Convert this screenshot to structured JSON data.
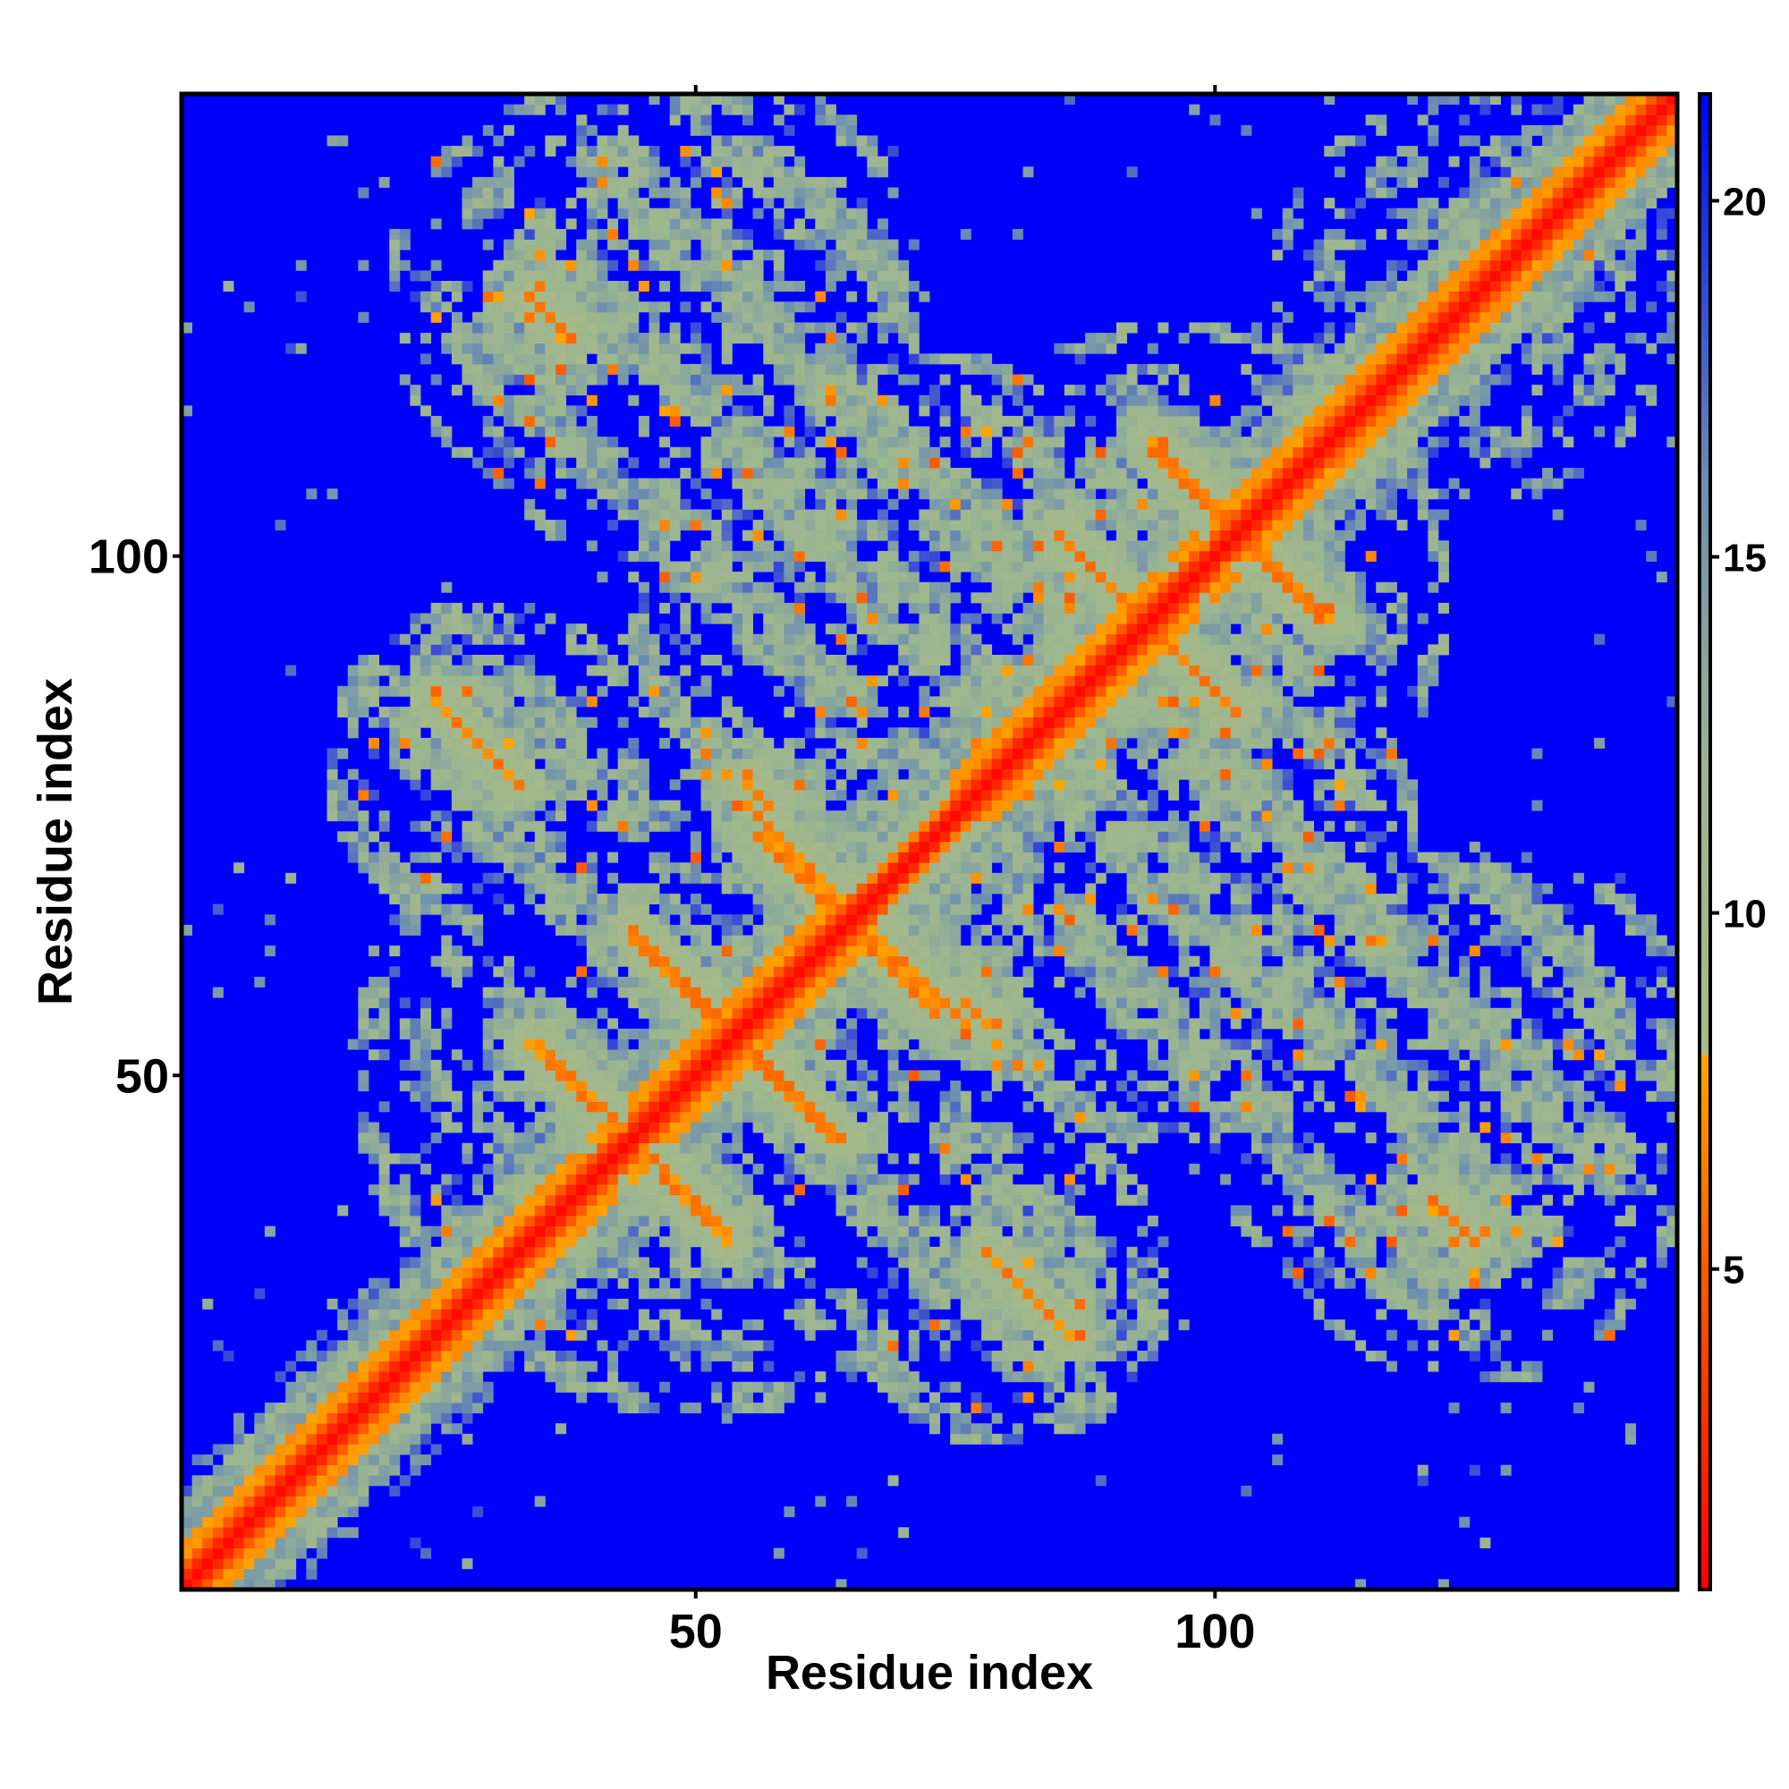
{
  "chart_data": {
    "type": "heatmap",
    "title": "",
    "xlabel": "Residue index",
    "ylabel": "Residue index",
    "n_residues": 144,
    "xlim": [
      1,
      144
    ],
    "ylim": [
      1,
      144
    ],
    "x_ticks": [
      {
        "value": 50,
        "label": "50"
      },
      {
        "value": 100,
        "label": "100"
      }
    ],
    "y_ticks": [
      {
        "value": 50,
        "label": "50"
      },
      {
        "value": 100,
        "label": "100"
      }
    ],
    "colorbar": {
      "range": [
        0.5,
        21.5
      ],
      "ticks": [
        {
          "value": 5,
          "label": "5"
        },
        {
          "value": 10,
          "label": "10"
        },
        {
          "value": 15,
          "label": "15"
        },
        {
          "value": 20,
          "label": "20"
        }
      ],
      "stops": [
        {
          "value": 0.5,
          "color": "#ff0000"
        },
        {
          "value": 5.0,
          "color": "#ff5a00"
        },
        {
          "value": 8.0,
          "color": "#ffa500"
        },
        {
          "value": 8.01,
          "color": "#aabb88"
        },
        {
          "value": 12.0,
          "color": "#9ab590"
        },
        {
          "value": 16.0,
          "color": "#6e8fb0"
        },
        {
          "value": 21.5,
          "color": "#0000ff"
        }
      ],
      "background_color": "#0000ff"
    },
    "features": {
      "diagonal_band_color": "#ff0000",
      "helices": [
        {
          "start": 1,
          "end": 42
        },
        {
          "start": 44,
          "end": 66
        },
        {
          "start": 75,
          "end": 98
        },
        {
          "start": 100,
          "end": 144
        }
      ],
      "sheet_contacts": [
        {
          "x1": 34,
          "y1": 53,
          "x2": 40,
          "y2": 47
        },
        {
          "x1": 44,
          "y1": 44,
          "x2": 53,
          "y2": 35
        },
        {
          "x1": 44,
          "y1": 64,
          "x2": 56,
          "y2": 52
        },
        {
          "x1": 55,
          "y1": 52,
          "x2": 64,
          "y2": 44
        },
        {
          "x1": 56,
          "y1": 73,
          "x2": 64,
          "y2": 66
        },
        {
          "x1": 67,
          "y1": 64,
          "x2": 75,
          "y2": 56
        },
        {
          "x1": 85,
          "y1": 102,
          "x2": 93,
          "y2": 94
        },
        {
          "x1": 94,
          "y1": 93,
          "x2": 102,
          "y2": 85
        },
        {
          "x1": 94,
          "y1": 110,
          "x2": 101,
          "y2": 103
        },
        {
          "x1": 103,
          "y1": 101,
          "x2": 111,
          "y2": 94
        },
        {
          "x1": 25,
          "y1": 86,
          "x2": 32,
          "y2": 79
        },
        {
          "x1": 78,
          "y1": 33,
          "x2": 85,
          "y2": 26
        },
        {
          "x1": 34,
          "y1": 125,
          "x2": 38,
          "y2": 121
        },
        {
          "x1": 121,
          "y1": 38,
          "x2": 125,
          "y2": 34
        },
        {
          "x1": 55,
          "y1": 78,
          "x2": 57,
          "y2": 76
        },
        {
          "x1": 76,
          "y1": 57,
          "x2": 78,
          "y2": 55
        }
      ],
      "contact_regions": [
        {
          "cx": 50,
          "cy": 50,
          "r": 34
        },
        {
          "cx": 97,
          "cy": 97,
          "r": 26
        },
        {
          "cx": 30,
          "cy": 80,
          "r": 16
        },
        {
          "cx": 80,
          "cy": 30,
          "r": 16
        },
        {
          "cx": 50,
          "cy": 118,
          "r": 22
        },
        {
          "cx": 118,
          "cy": 50,
          "r": 22
        },
        {
          "cx": 72,
          "cy": 100,
          "r": 20
        },
        {
          "cx": 100,
          "cy": 72,
          "r": 20
        },
        {
          "cx": 95,
          "cy": 65,
          "r": 22
        },
        {
          "cx": 65,
          "cy": 95,
          "r": 22
        },
        {
          "cx": 125,
          "cy": 125,
          "r": 20
        },
        {
          "cx": 130,
          "cy": 55,
          "r": 18
        },
        {
          "cx": 40,
          "cy": 125,
          "r": 20
        }
      ]
    }
  }
}
